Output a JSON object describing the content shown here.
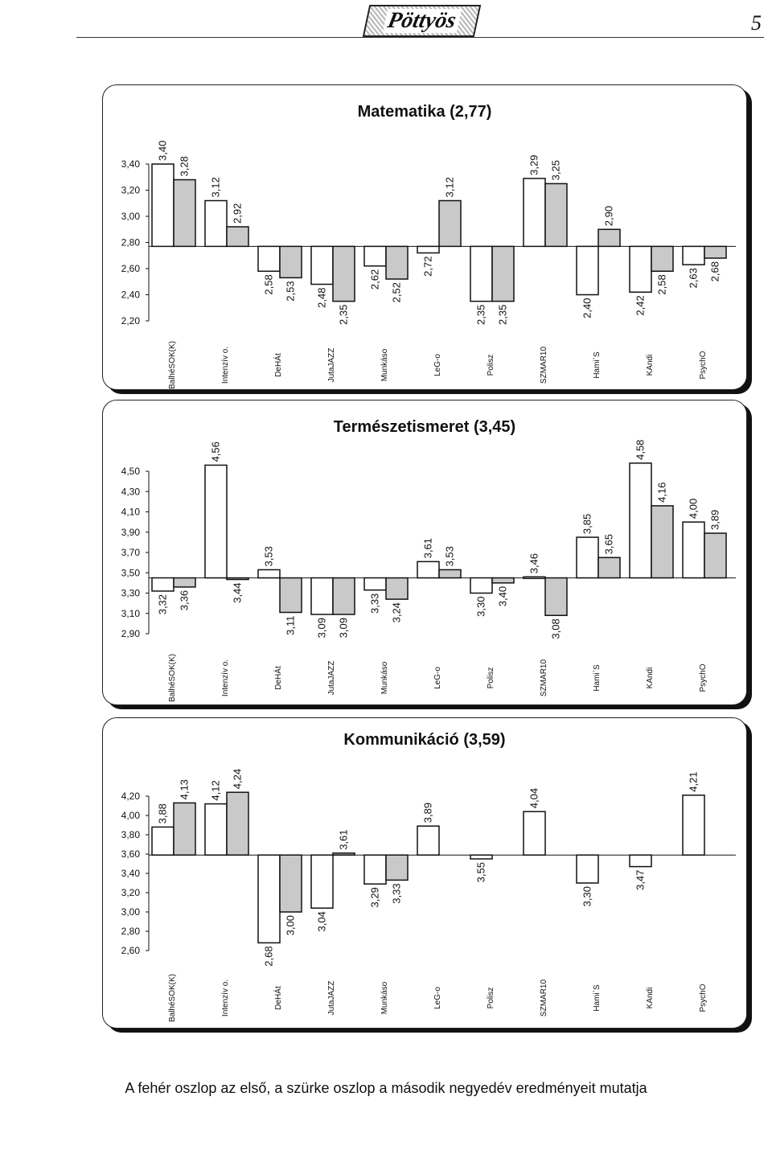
{
  "header": {
    "logo_text": "Pöttyös",
    "page_number": "5"
  },
  "legend_caption": "A fehér oszlop az első, a szürke oszlop a második negyedév eredményeit mutatja",
  "colors": {
    "first_quarter": "#ffffff",
    "second_quarter": "#c9c9c9",
    "ink": "#111111"
  },
  "chart_data": [
    {
      "type": "bar",
      "title": "Matematika (2,77)",
      "baseline": 2.77,
      "ylim": [
        2.2,
        3.4
      ],
      "yticks": [
        "3,40",
        "3,20",
        "3,00",
        "2,80",
        "2,60",
        "2,40",
        "2,20"
      ],
      "categories": [
        "BalhéSOK(K)",
        "Intenzív o.",
        "DeHÁt",
        "JutaJAZZ",
        "Munkáso",
        "LeG-o",
        "Polisz",
        "SZMAR10",
        "Hami`S",
        "KAndi",
        "PsychO"
      ],
      "series": [
        {
          "values": [
            3.4,
            3.12,
            2.58,
            2.48,
            2.62,
            2.72,
            2.35,
            3.29,
            2.4,
            2.42,
            2.63
          ],
          "labels": [
            "3,40",
            "3,12",
            "2,58",
            "2,48",
            "2,62",
            "2,72",
            "2,35",
            "3,29",
            "2,40",
            "2,42",
            "2,63"
          ]
        },
        {
          "values": [
            3.28,
            2.92,
            2.53,
            2.35,
            2.52,
            3.12,
            2.35,
            3.25,
            2.9,
            2.58,
            2.68
          ],
          "labels": [
            "3,28",
            "2,92",
            "2,53",
            "2,35",
            "2,52",
            "3,12",
            "2,35",
            "3,25",
            "2,90",
            "2,58",
            "2,68"
          ]
        }
      ]
    },
    {
      "type": "bar",
      "title": "Természetismeret (3,45)",
      "baseline": 3.45,
      "ylim": [
        2.9,
        4.5
      ],
      "yticks": [
        "4,50",
        "4,30",
        "4,10",
        "3,90",
        "3,70",
        "3,50",
        "3,30",
        "3,10",
        "2,90"
      ],
      "categories": [
        "BalhéSOK(K)",
        "Intenzív o.",
        "DeHÁt",
        "JutaJAZZ",
        "Munkáso",
        "LeG-o",
        "Polisz",
        "SZMAR10",
        "Hami`S",
        "KAndi",
        "PsychO"
      ],
      "series": [
        {
          "values": [
            3.32,
            4.56,
            3.53,
            3.09,
            3.33,
            3.61,
            3.3,
            3.46,
            3.85,
            4.58,
            4.0
          ],
          "labels": [
            "3,32",
            "4,56",
            "3,53",
            "3,09",
            "3,33",
            "3,61",
            "3,30",
            "3,46",
            "3,85",
            "4,58",
            "4,00"
          ]
        },
        {
          "values": [
            3.36,
            3.44,
            3.11,
            3.09,
            3.24,
            3.53,
            3.4,
            3.08,
            3.65,
            4.16,
            3.89
          ],
          "labels": [
            "3,36",
            "3,44",
            "3,11",
            "3,09",
            "3,24",
            "3,53",
            "3,40",
            "3,08",
            "3,65",
            "4,16",
            "3,89"
          ]
        }
      ]
    },
    {
      "type": "bar",
      "title": "Kommunikáció (3,59)",
      "baseline": 3.59,
      "ylim": [
        2.6,
        4.2
      ],
      "yticks": [
        "4,20",
        "4,00",
        "3,80",
        "3,60",
        "3,40",
        "3,20",
        "3,00",
        "2,80",
        "2,60"
      ],
      "categories": [
        "BalhéSOK(K)",
        "Intenzív o.",
        "DeHÁt",
        "JutaJAZZ",
        "Munkáso",
        "LeG-o",
        "Polisz",
        "SZMAR10",
        "Hami`S",
        "KAndi",
        "PsychO"
      ],
      "series": [
        {
          "values": [
            3.88,
            4.12,
            2.68,
            3.04,
            3.29,
            3.89,
            3.55,
            4.04,
            3.3,
            3.47,
            4.21
          ],
          "labels": [
            "3,88",
            "4,12",
            "2,68",
            "3,04",
            "3,29",
            "3,89",
            "3,55",
            "4,04",
            "3,30",
            "3,47",
            "4,21"
          ]
        },
        {
          "values": [
            4.13,
            4.24,
            3.0,
            3.61,
            3.33,
            null,
            null,
            null,
            null,
            null,
            null
          ],
          "labels": [
            "4,13",
            "4,24",
            "3,00",
            "3,61",
            "3,33",
            "",
            "",
            "",
            "",
            "",
            ""
          ]
        }
      ]
    }
  ]
}
